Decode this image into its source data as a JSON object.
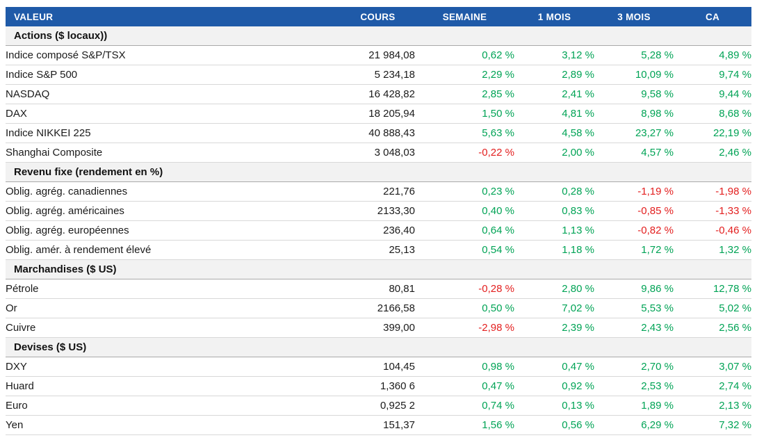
{
  "colors": {
    "header_bg": "#1F5AA8",
    "header_text": "#FFFFFF",
    "section_bg": "#F2F2F2",
    "positive": "#00A355",
    "negative": "#E31E1E",
    "row_border": "#D8D8D8",
    "section_border": "#A9A9A9",
    "body_text": "#1A1A1A"
  },
  "chart_data": {
    "type": "table",
    "columns": [
      "VALEUR",
      "COURS",
      "SEMAINE",
      "1 MOIS",
      "3 MOIS",
      "CA"
    ],
    "sections": [
      {
        "label": "Actions ($ locaux))",
        "rows": [
          [
            "Indice composé S&P/TSX",
            "21 984,08",
            "0,62 %",
            "3,12 %",
            "5,28 %",
            "4,89 %"
          ],
          [
            "Indice S&P 500",
            "5 234,18",
            "2,29 %",
            "2,89 %",
            "10,09 %",
            "9,74 %"
          ],
          [
            "NASDAQ",
            "16 428,82",
            "2,85 %",
            "2,41 %",
            "9,58 %",
            "9,44 %"
          ],
          [
            "DAX",
            "18 205,94",
            "1,50 %",
            "4,81 %",
            "8,98 %",
            "8,68 %"
          ],
          [
            "Indice NIKKEI 225",
            "40 888,43",
            "5,63 %",
            "4,58 %",
            "23,27 %",
            "22,19 %"
          ],
          [
            "Shanghai Composite",
            "3 048,03",
            "-0,22 %",
            "2,00 %",
            "4,57 %",
            "2,46 %"
          ]
        ]
      },
      {
        "label": "Revenu fixe (rendement en %)",
        "rows": [
          [
            "Oblig. agrég. canadiennes",
            "221,76",
            "0,23 %",
            "0,28 %",
            "-1,19 %",
            "-1,98 %"
          ],
          [
            "Oblig. agrég. américaines",
            "2133,30",
            "0,40 %",
            "0,83 %",
            "-0,85 %",
            "-1,33 %"
          ],
          [
            "Oblig. agrég. européennes",
            "236,40",
            "0,64 %",
            "1,13 %",
            "-0,82 %",
            "-0,46 %"
          ],
          [
            "Oblig. amér. à rendement élevé",
            "25,13",
            "0,54 %",
            "1,18 %",
            "1,72 %",
            "1,32 %"
          ]
        ]
      },
      {
        "label": "Marchandises ($ US)",
        "rows": [
          [
            "Pétrole",
            "80,81",
            "-0,28 %",
            "2,80 %",
            "9,86 %",
            "12,78 %"
          ],
          [
            "Or",
            "2166,58",
            "0,50 %",
            "7,02 %",
            "5,53 %",
            "5,02 %"
          ],
          [
            "Cuivre",
            "399,00",
            "-2,98 %",
            "2,39 %",
            "2,43 %",
            "2,56 %"
          ]
        ]
      },
      {
        "label": "Devises ($ US)",
        "rows": [
          [
            "DXY",
            "104,45",
            "0,98 %",
            "0,47 %",
            "2,70 %",
            "3,07 %"
          ],
          [
            "Huard",
            "1,360 6",
            "0,47 %",
            "0,92 %",
            "2,53 %",
            "2,74 %"
          ],
          [
            "Euro",
            "0,925 2",
            "0,74 %",
            "0,13 %",
            "1,89 %",
            "2,13 %"
          ],
          [
            "Yen",
            "151,37",
            "1,56 %",
            "0,56 %",
            "6,29 %",
            "7,32 %"
          ]
        ]
      }
    ]
  }
}
